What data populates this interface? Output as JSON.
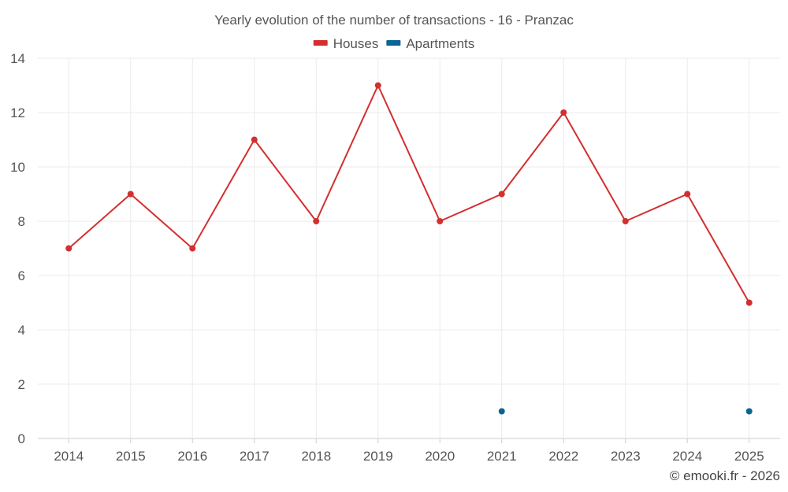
{
  "chart_data": {
    "type": "line",
    "title": "Yearly evolution of the number of transactions - 16 - Pranzac",
    "categories": [
      "2014",
      "2015",
      "2016",
      "2017",
      "2018",
      "2019",
      "2020",
      "2021",
      "2022",
      "2023",
      "2024",
      "2025"
    ],
    "series": [
      {
        "name": "Houses",
        "color": "#d32f2f",
        "values": [
          7,
          9,
          7,
          11,
          8,
          13,
          8,
          9,
          12,
          8,
          9,
          5
        ]
      },
      {
        "name": "Apartments",
        "color": "#0a6496",
        "values": [
          null,
          null,
          null,
          null,
          null,
          null,
          null,
          1,
          null,
          null,
          null,
          1
        ]
      }
    ],
    "ylim": [
      0,
      14
    ],
    "yticks": [
      0,
      2,
      4,
      6,
      8,
      10,
      12,
      14
    ],
    "xlabel": "",
    "ylabel": "",
    "grid": true,
    "legend_position": "top-center"
  },
  "credit": "© emooki.fr - 2026"
}
